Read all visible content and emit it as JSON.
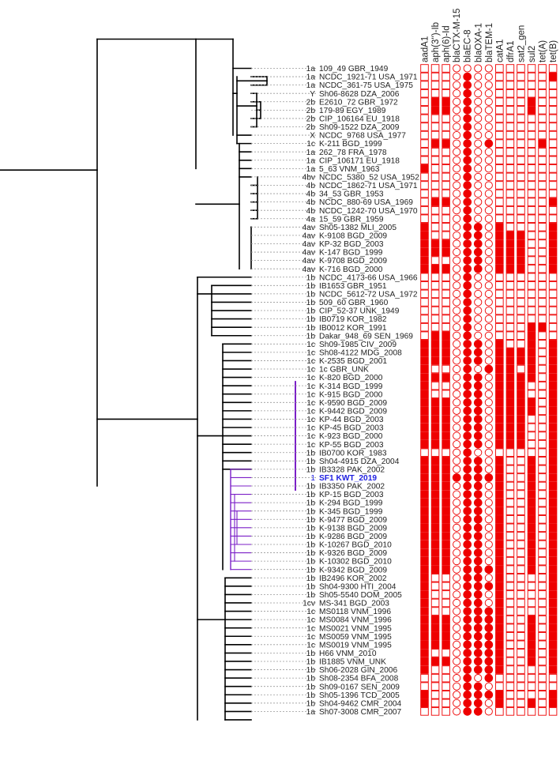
{
  "figure": {
    "genes": [
      "aadA1",
      "aph(3'')-Ib",
      "aph(6)-Id",
      "blaCTX-M-15",
      "blaEC-8",
      "blaOXA-1",
      "blaTEM-1",
      "catA1",
      "dfrA1",
      "sat2_gen",
      "sul2",
      "tet(A)",
      "tet(B)"
    ],
    "gene_shapes": [
      "square",
      "square",
      "square",
      "circle",
      "circle",
      "circle",
      "circle",
      "square",
      "square",
      "square",
      "square",
      "square",
      "square"
    ],
    "colors": {
      "present": "#ee0000",
      "absent_stroke": "#ee0000",
      "tree": "#000000",
      "highlight_clade": "#7b1fc7",
      "highlight_label": "#2020e0",
      "leader": "#999999",
      "text": "#222222"
    },
    "highlight_bracket_rows": [
      38,
      50
    ],
    "taxa": [
      {
        "serotype": "1a",
        "name": "109_49 GBR_1949",
        "genes": "0000000000000"
      },
      {
        "serotype": "1a",
        "name": "NCDC_1921-71 USA_1971",
        "genes": "0000100000001"
      },
      {
        "serotype": "1a",
        "name": "NCDC_361-75 USA_1975",
        "genes": "0000100000000"
      },
      {
        "serotype": "Y",
        "name": "Sh06-8628 DZA_2006",
        "genes": "0000100000000"
      },
      {
        "serotype": "2b",
        "name": "E2610_72 GBR_1972",
        "genes": "0110100000100"
      },
      {
        "serotype": "2b",
        "name": "179-89 EGY_1989",
        "genes": "0110100000100"
      },
      {
        "serotype": "2b",
        "name": "CIP_106164 EU_1918",
        "genes": "0000100000000"
      },
      {
        "serotype": "2b",
        "name": "Sh09-1522 DZA_2009",
        "genes": "0000100000000"
      },
      {
        "serotype": "X",
        "name": "NCDC_9768 USA_1977",
        "genes": "0000100000000"
      },
      {
        "serotype": "1c",
        "name": "K-211 BGD_1999",
        "genes": "0110101000010"
      },
      {
        "serotype": "1a",
        "name": "262_78 FRA_1978",
        "genes": "0000100000000"
      },
      {
        "serotype": "1a",
        "name": "CIP_106171 EU_1918",
        "genes": "0000100000000"
      },
      {
        "serotype": "1a",
        "name": "5_63 VNM_1963",
        "genes": "1000100000000"
      },
      {
        "serotype": "4bv",
        "name": "NCDC_5380_52 USA_1952",
        "genes": "0000100000000"
      },
      {
        "serotype": "4b",
        "name": "NCDC_1862-71 USA_1971",
        "genes": "0000100000000"
      },
      {
        "serotype": "4b",
        "name": "34_53 GBR_1953",
        "genes": "0000100000000"
      },
      {
        "serotype": "4b",
        "name": "NCDC_880-69 USA_1969",
        "genes": "0110100000001"
      },
      {
        "serotype": "4b",
        "name": "NCDC_1242-70 USA_1970",
        "genes": "0000100000000"
      },
      {
        "serotype": "4a",
        "name": "15_59 GBR_1959",
        "genes": "0000100000000"
      },
      {
        "serotype": "4av",
        "name": "Sh05-1382 MLI_2005",
        "genes": "1000110100001"
      },
      {
        "serotype": "4av",
        "name": "K-9108 BGD_2009",
        "genes": "1000110111001"
      },
      {
        "serotype": "4av",
        "name": "KP-32 BGD_2003",
        "genes": "1110110111001"
      },
      {
        "serotype": "4av",
        "name": "K-147 BGD_1999",
        "genes": "1110110111001"
      },
      {
        "serotype": "4av",
        "name": "K-9708 BGD_2009",
        "genes": "1000110111001"
      },
      {
        "serotype": "4av",
        "name": "K-716 BGD_2000",
        "genes": "1110110111001"
      },
      {
        "serotype": "1b",
        "name": "NCDC_4173-66 USA_1966",
        "genes": "0000100000000"
      },
      {
        "serotype": "1b",
        "name": "IB1653 GBR_1951",
        "genes": "0000100000000"
      },
      {
        "serotype": "1b",
        "name": "NCDC_5612-72 USA_1972",
        "genes": "0000100000000"
      },
      {
        "serotype": "1b",
        "name": "509_60 GBR_1960",
        "genes": "0000100000000"
      },
      {
        "serotype": "1b",
        "name": "CIP_52-37 UNK_1949",
        "genes": "0000100000000"
      },
      {
        "serotype": "1b",
        "name": "IB0719 KOR_1982",
        "genes": "0000100000000"
      },
      {
        "serotype": "1b",
        "name": "IB0012 KOR_1991",
        "genes": "0000100000110"
      },
      {
        "serotype": "1b",
        "name": "Dakar_948_69 SEN_1969",
        "genes": "0110100000100"
      },
      {
        "serotype": "1c",
        "name": "Sh09-1985 CIV_2009",
        "genes": "1110110100101"
      },
      {
        "serotype": "1c",
        "name": "Sh08-4122 MDG_2008",
        "genes": "1110110111101"
      },
      {
        "serotype": "1c",
        "name": "K-2535 BGD_2001",
        "genes": "1110110111101"
      },
      {
        "serotype": "1c",
        "name": "1c GBR_UNK",
        "genes": "1000101110101"
      },
      {
        "serotype": "1c",
        "name": "K-820 BGD_2000",
        "genes": "1110110111101"
      },
      {
        "serotype": "1c",
        "name": "K-314 BGD_1999",
        "genes": "1000110111001"
      },
      {
        "serotype": "1c",
        "name": "K-915 BGD_2000",
        "genes": "1000110111001"
      },
      {
        "serotype": "1c",
        "name": "K-9590 BGD_2009",
        "genes": "1110110111101"
      },
      {
        "serotype": "1c",
        "name": "K-9442 BGD_2009",
        "genes": "1110110111101"
      },
      {
        "serotype": "1c",
        "name": "KP-44 BGD_2003",
        "genes": "1110110111001"
      },
      {
        "serotype": "1c",
        "name": "KP-45 BGD_2003",
        "genes": "1110110111001"
      },
      {
        "serotype": "1c",
        "name": "K-923 BGD_2000",
        "genes": "1110110111001"
      },
      {
        "serotype": "1c",
        "name": "KP-55 BGD_2003",
        "genes": "1110110111001"
      },
      {
        "serotype": "1b",
        "name": "IB0700 KOR_1983",
        "genes": "0000100000001"
      },
      {
        "serotype": "1b",
        "name": "Sh04-4915 DZA_2004",
        "genes": "1110110100101"
      },
      {
        "serotype": "1b",
        "name": "IB3328 PAK_2002",
        "genes": "1110110100101"
      },
      {
        "serotype": "1",
        "name": "SF1 KWT_2019",
        "genes": "1111111100101",
        "highlight": true
      },
      {
        "serotype": "1b",
        "name": "IB3350 PAK_2002",
        "genes": "1110110100101"
      },
      {
        "serotype": "1b",
        "name": "KP-15 BGD_2003",
        "genes": "1110110100101"
      },
      {
        "serotype": "1b",
        "name": "K-294 BGD_1999",
        "genes": "1110110100101"
      },
      {
        "serotype": "1b",
        "name": "K-345 BGD_1999",
        "genes": "1110110100101"
      },
      {
        "serotype": "1b",
        "name": "K-9477 BGD_2009",
        "genes": "1110110100101"
      },
      {
        "serotype": "1b",
        "name": "K-9138 BGD_2009",
        "genes": "1110110100101"
      },
      {
        "serotype": "1b",
        "name": "K-9286 BGD_2009",
        "genes": "1110110100101"
      },
      {
        "serotype": "1b",
        "name": "K-10267 BGD_2010",
        "genes": "1110110100101"
      },
      {
        "serotype": "1b",
        "name": "K-9326 BGD_2009",
        "genes": "1110110100101"
      },
      {
        "serotype": "1b",
        "name": "K-10302 BGD_2010",
        "genes": "1110110100101"
      },
      {
        "serotype": "1b",
        "name": "K-9342 BGD_2009",
        "genes": "1110111100101"
      },
      {
        "serotype": "1b",
        "name": "IB2496 KOR_2002",
        "genes": "1000110100001"
      },
      {
        "serotype": "1b",
        "name": "Sh04-9300 HTI_2004",
        "genes": "1000111100001"
      },
      {
        "serotype": "1b",
        "name": "Sh05-5540 DOM_2005",
        "genes": "1000110100001"
      },
      {
        "serotype": "1cv",
        "name": "MS-341 BGD_2003",
        "genes": "1000110100001"
      },
      {
        "serotype": "1c",
        "name": "MS0118 VNM_1996",
        "genes": "1000111100001"
      },
      {
        "serotype": "1c",
        "name": "MS0084 VNM_1996",
        "genes": "1110111100101"
      },
      {
        "serotype": "1c",
        "name": "MS0021 VNM_1995",
        "genes": "1110111100101"
      },
      {
        "serotype": "1c",
        "name": "MS0059 VNM_1995",
        "genes": "1110111100101"
      },
      {
        "serotype": "1c",
        "name": "MS0019 VNM_1995",
        "genes": "1110111100101"
      },
      {
        "serotype": "1b",
        "name": "H66 VNM_2010",
        "genes": "1000111100101"
      },
      {
        "serotype": "1b",
        "name": "IB1885 VNM_UNK",
        "genes": "1110111100101"
      },
      {
        "serotype": "1b",
        "name": "Sh06-2028 GIN_2006",
        "genes": "1000111100001"
      },
      {
        "serotype": "1b",
        "name": "Sh08-2354 BFA_2008",
        "genes": "0000101000000"
      },
      {
        "serotype": "1b",
        "name": "Sh09-0167 SEN_2009",
        "genes": "0000110000000"
      },
      {
        "serotype": "1b",
        "name": "Sh05-1396 TCD_2005",
        "genes": "1000111100001"
      },
      {
        "serotype": "1b",
        "name": "Sh04-9462 CMR_2004",
        "genes": "1000110100101"
      },
      {
        "serotype": "1a",
        "name": "Sh07-3008 CMR_2007",
        "genes": "0000110000000"
      }
    ]
  }
}
